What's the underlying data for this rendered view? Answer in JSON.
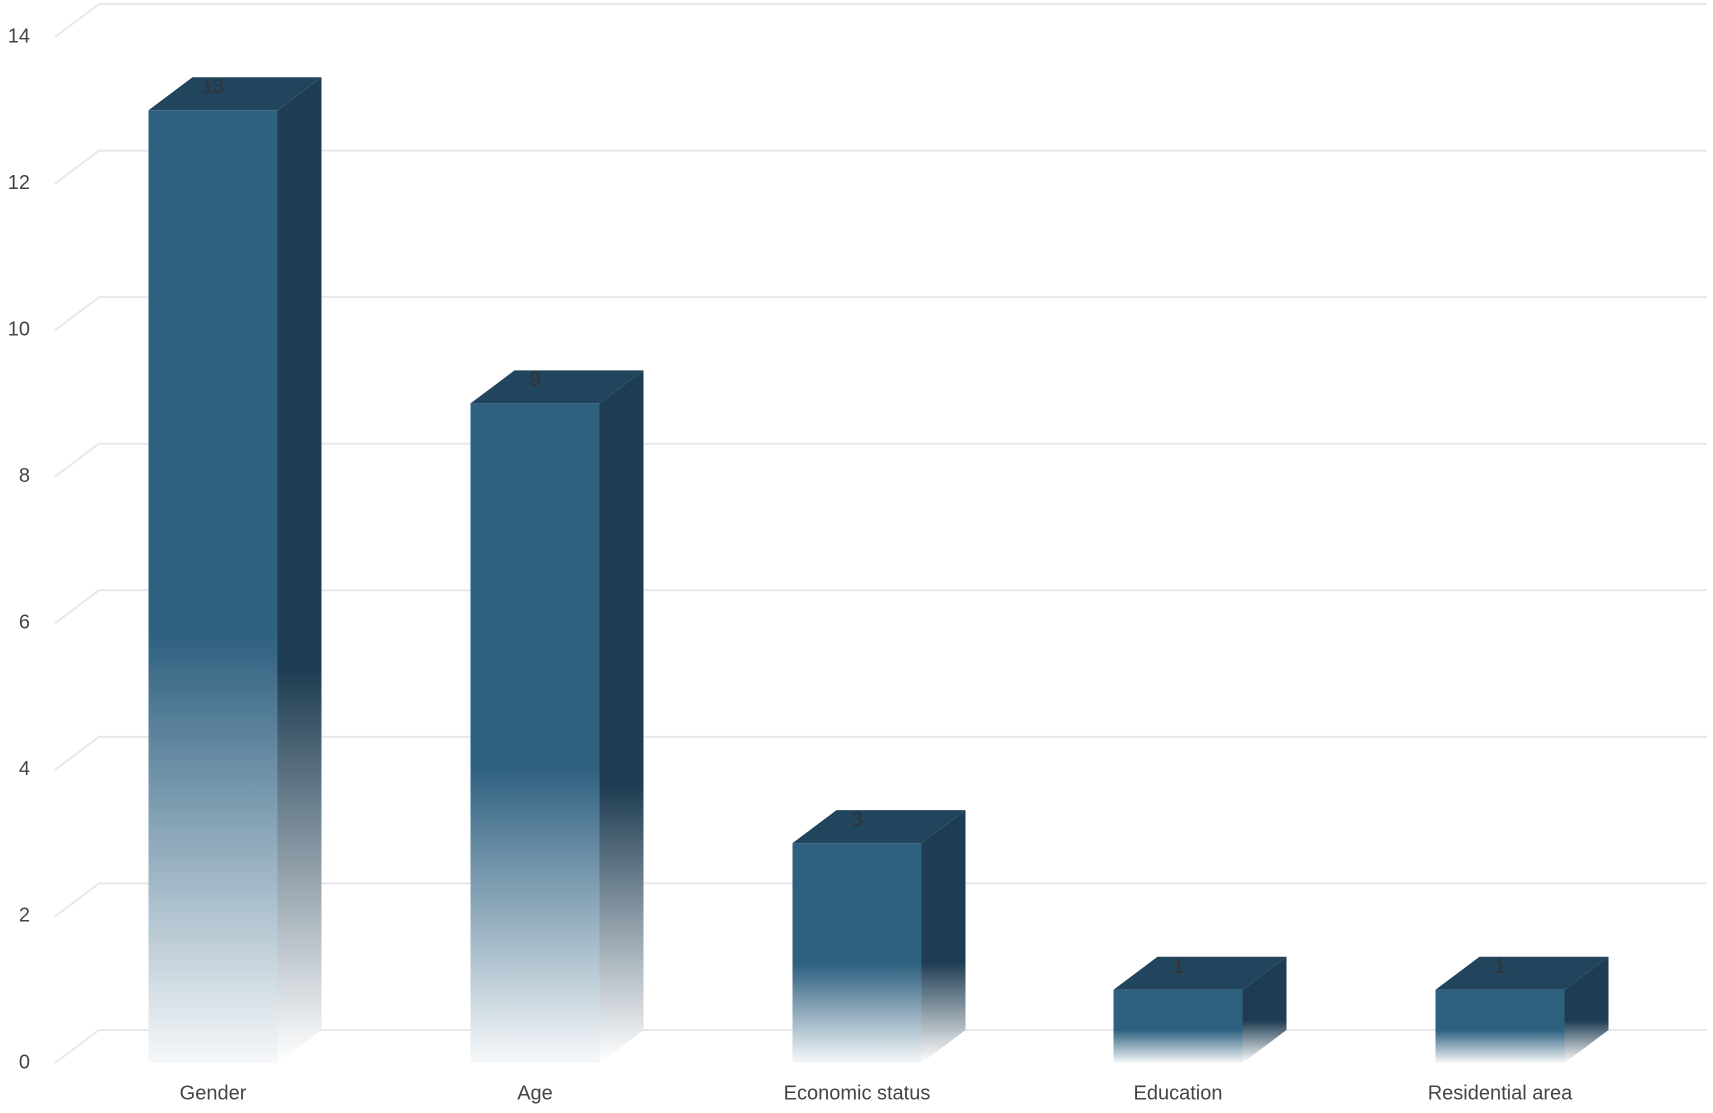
{
  "chart_data": {
    "type": "bar3d",
    "categories": [
      "Gender",
      "Age",
      "Economic status",
      "Education",
      "Residential area"
    ],
    "values": [
      13,
      9,
      3,
      1,
      1
    ],
    "color": "#2e6080",
    "ylim": [
      0,
      14
    ],
    "yticks": [
      0,
      2,
      4,
      6,
      8,
      10,
      12,
      14
    ],
    "grid": true
  }
}
